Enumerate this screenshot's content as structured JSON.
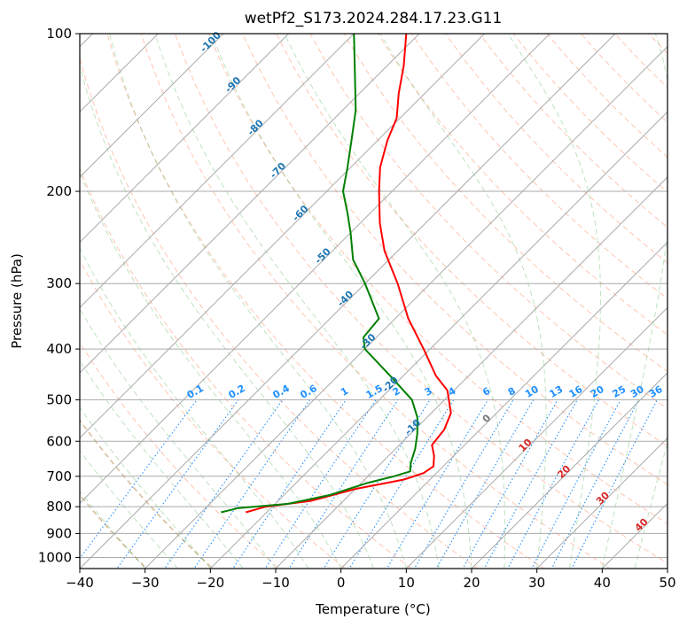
{
  "chart_data": {
    "type": "line",
    "chart_kind": "skew-t log-p",
    "title": "wetPf2_S173.2024.284.17.23.G11",
    "xlabel": "Temperature (°C)",
    "ylabel": "Pressure (hPa)",
    "xlim": [
      -40,
      50
    ],
    "ylim": [
      1050,
      100
    ],
    "y_scale": "log",
    "grid": true,
    "x_ticks": [
      -40,
      -30,
      -20,
      -10,
      0,
      10,
      20,
      30,
      40,
      50
    ],
    "x_tick_labels": [
      "−40",
      "−30",
      "−20",
      "−10",
      "0",
      "10",
      "20",
      "30",
      "40",
      "50"
    ],
    "y_ticks": [
      1000,
      900,
      800,
      700,
      600,
      500,
      400,
      300,
      200,
      100
    ],
    "y_tick_labels": [
      "1000",
      "900",
      "800",
      "700",
      "600",
      "500",
      "400",
      "300",
      "200",
      "100"
    ],
    "series": [
      {
        "role": "temperature",
        "color": "#ff0000",
        "points": [
          {
            "p": 820,
            "t": -23.2
          },
          {
            "p": 800,
            "t": -21.0
          },
          {
            "p": 780,
            "t": -15.0
          },
          {
            "p": 740,
            "t": -10.0
          },
          {
            "p": 710,
            "t": -4.0
          },
          {
            "p": 690,
            "t": -2.0
          },
          {
            "p": 670,
            "t": -1.5
          },
          {
            "p": 640,
            "t": -3.0
          },
          {
            "p": 610,
            "t": -5.0
          },
          {
            "p": 570,
            "t": -5.5
          },
          {
            "p": 530,
            "t": -7.0
          },
          {
            "p": 480,
            "t": -11.0
          },
          {
            "p": 450,
            "t": -15.0
          },
          {
            "p": 400,
            "t": -21.0
          },
          {
            "p": 350,
            "t": -28.0
          },
          {
            "p": 300,
            "t": -35.0
          },
          {
            "p": 260,
            "t": -42.0
          },
          {
            "p": 230,
            "t": -47.0
          },
          {
            "p": 200,
            "t": -52.0
          },
          {
            "p": 180,
            "t": -55.5
          },
          {
            "p": 160,
            "t": -58.5
          },
          {
            "p": 145,
            "t": -60.5
          },
          {
            "p": 130,
            "t": -64.0
          },
          {
            "p": 115,
            "t": -67.5
          },
          {
            "p": 100,
            "t": -72.0
          }
        ]
      },
      {
        "role": "dewpoint",
        "color": "#008000",
        "points": [
          {
            "p": 820,
            "t": -27.0
          },
          {
            "p": 805,
            "t": -25.0
          },
          {
            "p": 790,
            "t": -18.0
          },
          {
            "p": 760,
            "t": -13.0
          },
          {
            "p": 720,
            "t": -9.0
          },
          {
            "p": 700,
            "t": -6.0
          },
          {
            "p": 685,
            "t": -4.3
          },
          {
            "p": 660,
            "t": -5.5
          },
          {
            "p": 620,
            "t": -7.0
          },
          {
            "p": 580,
            "t": -9.0
          },
          {
            "p": 540,
            "t": -11.5
          },
          {
            "p": 500,
            "t": -15.0
          },
          {
            "p": 450,
            "t": -22.0
          },
          {
            "p": 400,
            "t": -30.0
          },
          {
            "p": 380,
            "t": -32.0
          },
          {
            "p": 350,
            "t": -32.5
          },
          {
            "p": 300,
            "t": -40.0
          },
          {
            "p": 270,
            "t": -45.5
          },
          {
            "p": 240,
            "t": -50.0
          },
          {
            "p": 220,
            "t": -53.5
          },
          {
            "p": 200,
            "t": -57.5
          },
          {
            "p": 180,
            "t": -60.5
          },
          {
            "p": 160,
            "t": -64.0
          },
          {
            "p": 140,
            "t": -68.0
          },
          {
            "p": 120,
            "t": -73.5
          },
          {
            "p": 100,
            "t": -80.0
          }
        ]
      }
    ],
    "isotherm_labels": [
      {
        "value": -100,
        "text": "-100"
      },
      {
        "value": -90,
        "text": "-90"
      },
      {
        "value": -80,
        "text": "-80"
      },
      {
        "value": -70,
        "text": "-70"
      },
      {
        "value": -60,
        "text": "-60"
      },
      {
        "value": -50,
        "text": "-50"
      },
      {
        "value": -40,
        "text": "-40"
      },
      {
        "value": -30,
        "text": "-30"
      },
      {
        "value": -20,
        "text": "-20"
      },
      {
        "value": -10,
        "text": "-10"
      },
      {
        "value": 0,
        "text": "0"
      },
      {
        "value": 10,
        "text": "10"
      },
      {
        "value": 20,
        "text": "20"
      },
      {
        "value": 30,
        "text": "30"
      },
      {
        "value": 40,
        "text": "40"
      }
    ],
    "mixing_ratio_labels": [
      "0.1",
      "0.2",
      "0.4",
      "0.6",
      "1",
      "1.5",
      "2",
      "3",
      "4",
      "6",
      "8",
      "10",
      "13",
      "16",
      "20",
      "25",
      "30",
      "36"
    ],
    "mixing_ratio_values": [
      0.1,
      0.2,
      0.4,
      0.6,
      1,
      1.5,
      2,
      3,
      4,
      6,
      8,
      10,
      13,
      16,
      20,
      25,
      30,
      36
    ],
    "colors": {
      "isotherm_cold_label": "#1f77b4",
      "isotherm_warm_label": "#d62728",
      "isotherm_zero_label": "#777777",
      "mixing_ratio": "#1e90ff",
      "dry_adiabat": "#ff7f50",
      "moist_adiabat": "#2ca02c",
      "grid": "#aaaaaa"
    }
  }
}
